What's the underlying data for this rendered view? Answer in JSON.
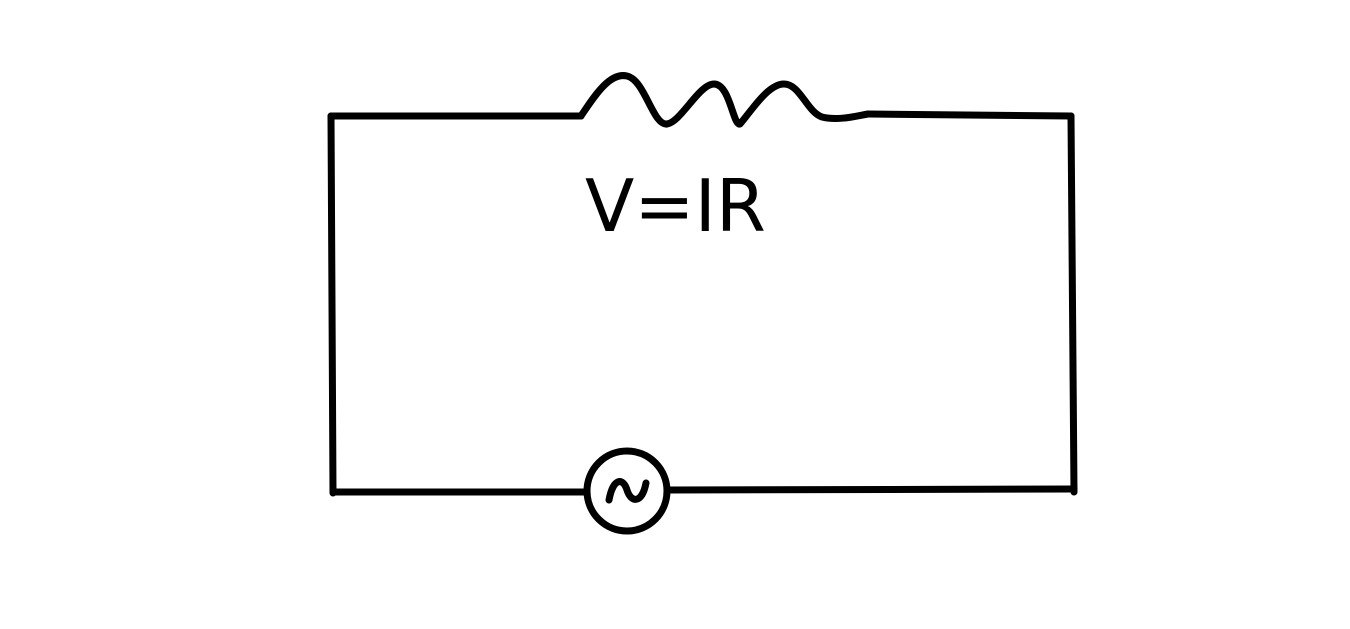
{
  "diagram": {
    "formula": "V=IR",
    "components": [
      {
        "kind": "resistor",
        "icon": "resistor-zigzag-icon"
      },
      {
        "kind": "ac-source",
        "icon": "ac-source-sine-icon"
      }
    ],
    "colors": {
      "background": "#ffffff",
      "stroke": "#000000"
    }
  }
}
